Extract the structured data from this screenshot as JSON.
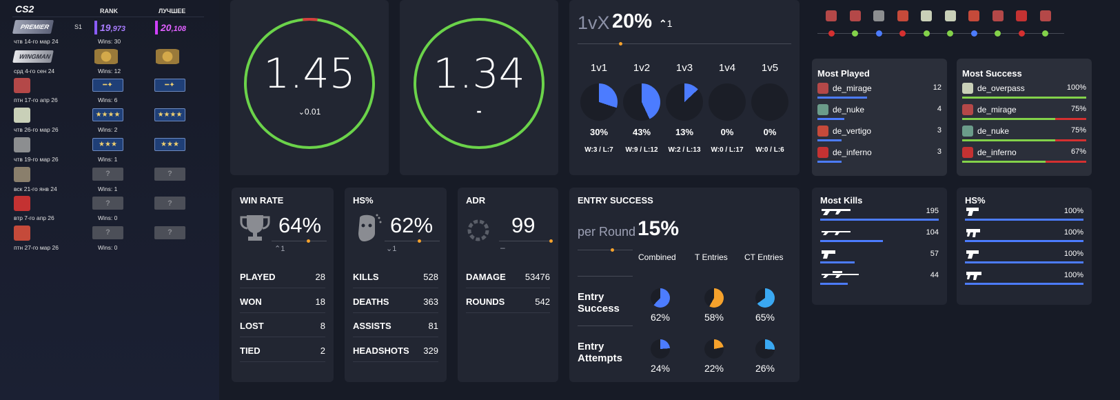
{
  "sidebar": {
    "logo": "CS2",
    "col_rank": "RANK",
    "col_best": "ЛУЧШЕЕ",
    "rows": [
      {
        "date": "чтв 14-го мар 24",
        "season": "S1",
        "rank_main": "19",
        "rank_sub": ",973",
        "best_main": "20",
        "best_sub": ",108",
        "wins": "Wins: 30",
        "icon_color": "#6a7086",
        "label": "PREMIER"
      },
      {
        "date": "срд 4-го сен 24",
        "wins": "Wins: 12",
        "icon_color": "#7d8088",
        "label": "WINGMAN"
      },
      {
        "date": "птн 17-го апр 26",
        "wins": "Wins: 6",
        "icon_color": "#b44848"
      },
      {
        "date": "чтв 26-го мар 26",
        "wins": "Wins: 2",
        "icon_color": "#c9d0b8"
      },
      {
        "date": "чтв 19-го мар 26",
        "wins": "Wins: 1",
        "icon_color": "#8c8e90"
      },
      {
        "date": "вск 21-го янв 24",
        "wins": "Wins: 1",
        "icon_color": "#8a7f6c"
      },
      {
        "date": "втр 7-го апр 26",
        "wins": "Wins: 0",
        "icon_color": "#c43232"
      },
      {
        "date": "птн 27-го мар 26",
        "wins": "Wins: 0",
        "icon_color": "#c54a3a"
      }
    ],
    "badge_q": "?"
  },
  "rating1": {
    "value": "1.45",
    "delta": "0.01"
  },
  "rating2": {
    "value": "1.34",
    "delta": "-"
  },
  "clutch": {
    "label": "1vX",
    "pct": "20%",
    "delta": "1",
    "items": [
      {
        "label": "1v1",
        "pct": "30%",
        "wl": "W:3 / L:7",
        "frac": 0.3
      },
      {
        "label": "1v2",
        "pct": "43%",
        "wl": "W:9 / L:12",
        "frac": 0.43
      },
      {
        "label": "1v3",
        "pct": "13%",
        "wl": "W:2 / L:13",
        "frac": 0.13
      },
      {
        "label": "1v4",
        "pct": "0%",
        "wl": "W:0 / L:17",
        "frac": 0
      },
      {
        "label": "1v5",
        "pct": "0%",
        "wl": "W:0 / L:6",
        "frac": 0
      }
    ]
  },
  "winrate": {
    "title": "WIN RATE",
    "value": "64%",
    "delta": "1",
    "rows": [
      {
        "k": "PLAYED",
        "v": "28"
      },
      {
        "k": "WON",
        "v": "18"
      },
      {
        "k": "LOST",
        "v": "8"
      },
      {
        "k": "TIED",
        "v": "2"
      }
    ]
  },
  "hs": {
    "title": "HS%",
    "value": "62%",
    "delta": "1",
    "rows": [
      {
        "k": "KILLS",
        "v": "528"
      },
      {
        "k": "DEATHS",
        "v": "363"
      },
      {
        "k": "ASSISTS",
        "v": "81"
      },
      {
        "k": "HEADSHOTS",
        "v": "329"
      }
    ]
  },
  "adr": {
    "title": "ADR",
    "value": "99",
    "delta": "–",
    "rows": [
      {
        "k": "DAMAGE",
        "v": "53476"
      },
      {
        "k": "ROUNDS",
        "v": "542"
      }
    ]
  },
  "entry": {
    "title": "ENTRY SUCCESS",
    "per_round_label": "per Round",
    "per_round_value": "15%",
    "col_combined": "Combined",
    "col_t": "T Entries",
    "col_ct": "CT Entries",
    "row1_label_a": "Entry",
    "row1_label_b": "Success",
    "row2_label_a": "Entry",
    "row2_label_b": "Attempts",
    "success": [
      {
        "pct": "62%",
        "frac": 0.62
      },
      {
        "pct": "58%",
        "frac": 0.58
      },
      {
        "pct": "65%",
        "frac": 0.65
      }
    ],
    "attempts": [
      {
        "pct": "24%",
        "frac": 0.24
      },
      {
        "pct": "22%",
        "frac": 0.22
      },
      {
        "pct": "26%",
        "frac": 0.26
      }
    ],
    "colors": [
      "#4c7cff",
      "#f6a22c",
      "#3aa8f2"
    ]
  },
  "recent_matches": {
    "icon_colors": [
      "#b44848",
      "#b44848",
      "#8c8e90",
      "#c54a3a",
      "#c9d0b8",
      "#c9d0b8",
      "#c54a3a",
      "#b44848",
      "#c43232",
      "#b44848"
    ],
    "dot_colors": [
      "#d53030",
      "#83d24a",
      "#4c7cff",
      "#d53030",
      "#83d24a",
      "#83d24a",
      "#4c7cff",
      "#83d24a",
      "#d53030",
      "#83d24a"
    ]
  },
  "most_played": {
    "title": "Most Played",
    "items": [
      {
        "map": "de_mirage",
        "value": "12",
        "frac": 1.0,
        "icon_color": "#b44848"
      },
      {
        "map": "de_nuke",
        "value": "4",
        "frac": 0.33,
        "icon_color": "#6b9c8a"
      },
      {
        "map": "de_vertigo",
        "value": "3",
        "frac": 0.25,
        "icon_color": "#c54a3a"
      },
      {
        "map": "de_inferno",
        "value": "3",
        "frac": 0.25,
        "icon_color": "#c43232"
      }
    ]
  },
  "most_success": {
    "title": "Most Success",
    "items": [
      {
        "map": "de_overpass",
        "value": "100%",
        "frac": 1.0,
        "icon_color": "#c9d0b8"
      },
      {
        "map": "de_mirage",
        "value": "75%",
        "frac": 0.75,
        "icon_color": "#b44848"
      },
      {
        "map": "de_nuke",
        "value": "75%",
        "frac": 0.75,
        "icon_color": "#6b9c8a"
      },
      {
        "map": "de_inferno",
        "value": "67%",
        "frac": 0.67,
        "icon_color": "#c43232"
      }
    ]
  },
  "most_kills": {
    "title": "Most Kills",
    "items": [
      {
        "weapon": "ak-47",
        "value": "195",
        "frac": 1.0
      },
      {
        "weapon": "m4a1-s",
        "value": "104",
        "frac": 0.53
      },
      {
        "weapon": "deagle",
        "value": "57",
        "frac": 0.29
      },
      {
        "weapon": "sniper",
        "value": "44",
        "frac": 0.23
      }
    ]
  },
  "weapon_hs": {
    "title": "HS%",
    "items": [
      {
        "weapon": "pistol-1",
        "value": "100%",
        "frac": 1.0
      },
      {
        "weapon": "smg",
        "value": "100%",
        "frac": 1.0
      },
      {
        "weapon": "pistol-2",
        "value": "100%",
        "frac": 1.0
      },
      {
        "weapon": "smg-2",
        "value": "100%",
        "frac": 1.0
      }
    ]
  }
}
